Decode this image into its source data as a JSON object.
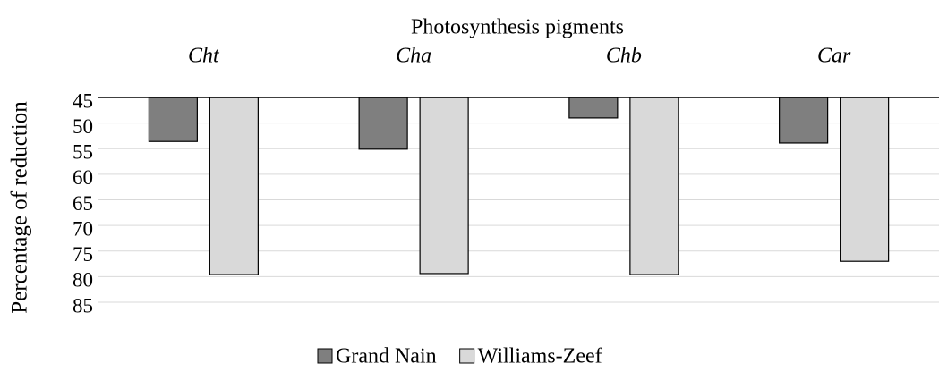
{
  "chart_data": {
    "type": "bar",
    "title": "Photosynthesis pigments",
    "y_label": "Percentage of reduction",
    "categories": [
      "Cht",
      "Cha",
      "Chb",
      "Car"
    ],
    "series": [
      {
        "name": "Grand Nain",
        "color": "#7f7f7f",
        "values": [
          53.6,
          55.1,
          49.0,
          53.9
        ]
      },
      {
        "name": "Williams-Zeef",
        "color": "#d9d9d9",
        "values": [
          79.6,
          79.4,
          79.6,
          77.0
        ]
      }
    ],
    "ylim": [
      45,
      85
    ],
    "yticks": [
      45,
      50,
      55,
      60,
      65,
      70,
      75,
      80,
      85
    ],
    "y_inverted": true,
    "grid": true,
    "legend": "bottom"
  }
}
